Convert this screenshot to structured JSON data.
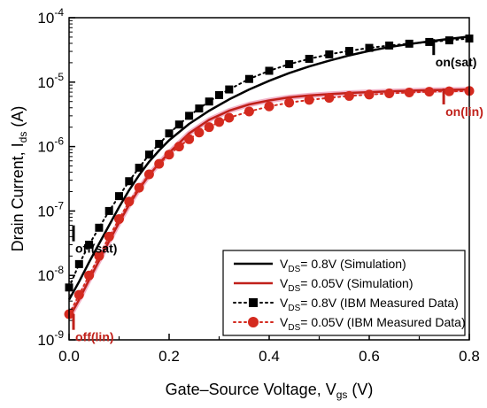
{
  "chart_data": {
    "type": "line",
    "xlabel": "Gate–Source Voltage, V",
    "xlabel_sub": "gs",
    "xlabel_unit": " (V)",
    "ylabel": "Drain Current, I",
    "ylabel_sub": "ds",
    "ylabel_unit": " (A)",
    "xlim": [
      0,
      0.8
    ],
    "ylim": [
      1e-09,
      0.0001
    ],
    "y_scale": "log",
    "grid": false,
    "legend_position": "bottom-right",
    "x_ticks": [
      0.0,
      0.2,
      0.4,
      0.6,
      0.8
    ],
    "x_tick_labels": [
      "0.0",
      "0.2",
      "0.4",
      "0.6",
      "0.8"
    ],
    "y_ticks": [
      1e-09,
      1e-08,
      1e-07,
      1e-06,
      1e-05,
      0.0001
    ],
    "y_tick_labels": [
      {
        "base": "10",
        "exp": "-9"
      },
      {
        "base": "10",
        "exp": "-8"
      },
      {
        "base": "10",
        "exp": "-7"
      },
      {
        "base": "10",
        "exp": "-6"
      },
      {
        "base": "10",
        "exp": "-5"
      },
      {
        "base": "10",
        "exp": "-4"
      }
    ],
    "series": [
      {
        "name_prefix": "V",
        "name_sub": "DS",
        "name_suffix": "= 0.8V (Simulation)",
        "kind": "line",
        "color": "#000000",
        "x": [
          0.0,
          0.02,
          0.04,
          0.06,
          0.08,
          0.1,
          0.12,
          0.14,
          0.16,
          0.18,
          0.2,
          0.24,
          0.28,
          0.32,
          0.36,
          0.4,
          0.44,
          0.48,
          0.52,
          0.56,
          0.6,
          0.64,
          0.68,
          0.72,
          0.76,
          0.8
        ],
        "y": [
          4.2e-09,
          8e-09,
          1.6e-08,
          3.1e-08,
          6e-08,
          1.15e-07,
          2.1e-07,
          3.6e-07,
          5.8e-07,
          8.7e-07,
          1.25e-06,
          2.25e-06,
          3.6e-06,
          5.4e-06,
          7.7e-06,
          1.05e-05,
          1.38e-05,
          1.75e-05,
          2.15e-05,
          2.6e-05,
          3.05e-05,
          3.5e-05,
          3.9e-05,
          4.3e-05,
          4.7e-05,
          5.1e-05
        ]
      },
      {
        "name_prefix": "V",
        "name_sub": "DS",
        "name_suffix": "= 0.05V (Simulation)",
        "kind": "line",
        "color": "#c0201a",
        "x": [
          0.0,
          0.02,
          0.04,
          0.06,
          0.08,
          0.1,
          0.12,
          0.14,
          0.16,
          0.18,
          0.2,
          0.24,
          0.28,
          0.32,
          0.36,
          0.4,
          0.44,
          0.48,
          0.52,
          0.56,
          0.6,
          0.64,
          0.68,
          0.72,
          0.76,
          0.8
        ],
        "y": [
          2.2e-09,
          4.2e-09,
          8.5e-09,
          1.7e-08,
          3.4e-08,
          6.6e-08,
          1.25e-07,
          2.2e-07,
          3.6e-07,
          5.5e-07,
          8e-07,
          1.6e-06,
          2.6e-06,
          3.6e-06,
          4.5e-06,
          5.2e-06,
          5.8e-06,
          6.2e-06,
          6.5e-06,
          6.8e-06,
          7e-06,
          7.2e-06,
          7.35e-06,
          7.5e-06,
          7.6e-06,
          7.7e-06
        ]
      },
      {
        "name_prefix": "V",
        "name_sub": "DS",
        "name_suffix": "= 0.8V (IBM Measured Data)",
        "kind": "dotted-squares",
        "color": "#000000",
        "x": [
          0.0,
          0.02,
          0.04,
          0.06,
          0.08,
          0.1,
          0.12,
          0.14,
          0.16,
          0.18,
          0.2,
          0.22,
          0.24,
          0.26,
          0.28,
          0.3,
          0.32,
          0.36,
          0.4,
          0.44,
          0.48,
          0.52,
          0.56,
          0.6,
          0.64,
          0.68,
          0.72,
          0.76,
          0.8
        ],
        "y": [
          6.5e-09,
          1.5e-08,
          3e-08,
          5.5e-08,
          1e-07,
          1.7e-07,
          2.9e-07,
          4.7e-07,
          7.5e-07,
          1.1e-06,
          1.6e-06,
          2.2e-06,
          3e-06,
          3.9e-06,
          5e-06,
          6.3e-06,
          7.7e-06,
          1.12e-05,
          1.5e-05,
          1.9e-05,
          2.3e-05,
          2.7e-05,
          3.05e-05,
          3.4e-05,
          3.7e-05,
          3.95e-05,
          4.2e-05,
          4.45e-05,
          4.75e-05
        ]
      },
      {
        "name_prefix": "V",
        "name_sub": "DS",
        "name_suffix": "= 0.05V (IBM Measured Data)",
        "kind": "dotted-circles",
        "color": "#d42a1f",
        "x": [
          0.0,
          0.02,
          0.04,
          0.06,
          0.08,
          0.1,
          0.12,
          0.14,
          0.16,
          0.18,
          0.2,
          0.22,
          0.24,
          0.26,
          0.28,
          0.3,
          0.32,
          0.36,
          0.4,
          0.44,
          0.48,
          0.52,
          0.56,
          0.6,
          0.64,
          0.68,
          0.72,
          0.76,
          0.8
        ],
        "y": [
          2.5e-09,
          5e-09,
          1e-08,
          2e-08,
          4e-08,
          7.5e-08,
          1.4e-07,
          2.3e-07,
          3.7e-07,
          5.4e-07,
          7.5e-07,
          1e-06,
          1.3e-06,
          1.65e-06,
          2e-06,
          2.4e-06,
          2.8e-06,
          3.5e-06,
          4.2e-06,
          4.8e-06,
          5.3e-06,
          5.7e-06,
          6.1e-06,
          6.4e-06,
          6.7e-06,
          6.9e-06,
          7.1e-06,
          7.2e-06,
          7.3e-06
        ]
      }
    ],
    "annotations": [
      {
        "label": "on(sat)",
        "x": 0.72,
        "y": 3.5e-05,
        "color": "#000000",
        "text_side": "below"
      },
      {
        "label": "on(lin)",
        "x": 0.74,
        "y": 6e-06,
        "color": "#c0201a",
        "text_side": "below"
      },
      {
        "label": "off(sat)",
        "x": 0.0,
        "y": 4.5e-08,
        "color": "#000000",
        "text_side": "below"
      },
      {
        "label": "off(lin)",
        "x": 0.0,
        "y": 1.9e-09,
        "color": "#c0201a",
        "text_side": "below"
      }
    ]
  }
}
